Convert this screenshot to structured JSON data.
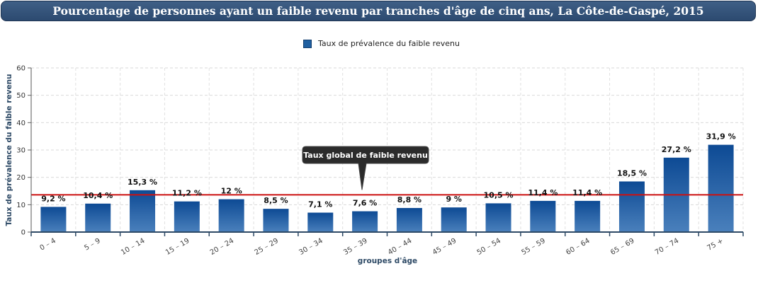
{
  "title": "Pourcentage de personnes ayant un faible revenu par tranches d'âge de cinq ans, La Côte-de-Gaspé, 2015",
  "chart_data": {
    "type": "bar",
    "title": "Pourcentage de personnes ayant un faible revenu par tranches d'âge de cinq ans, La Côte-de-Gaspé, 2015",
    "categories": [
      "0 – 4",
      "5 – 9",
      "10 – 14",
      "15 – 19",
      "20 – 24",
      "25 – 29",
      "30 – 34",
      "35 – 39",
      "40 – 44",
      "45 – 49",
      "50 – 54",
      "55 – 59",
      "60 – 64",
      "65 – 69",
      "70 – 74",
      "75 +"
    ],
    "series": [
      {
        "name": "Taux de prévalence du faible revenu",
        "values": [
          9.2,
          10.4,
          15.3,
          11.2,
          12,
          8.5,
          7.1,
          7.6,
          8.8,
          9,
          10.5,
          11.4,
          11.4,
          18.5,
          27.2,
          31.9
        ],
        "labels": [
          "9,2 %",
          "10,4 %",
          "15,3 %",
          "11,2 %",
          "12 %",
          "8,5 %",
          "7,1 %",
          "7,6 %",
          "8,8 %",
          "9 %",
          "10,5 %",
          "11,4 %",
          "11,4 %",
          "18,5 %",
          "27,2 %",
          "31,9 %"
        ],
        "color": "#1f5fa0"
      }
    ],
    "reference_line": {
      "value": 13.6,
      "label": "Taux global de faible revenu",
      "color": "#cc1111"
    },
    "xlabel": "groupes d'âge",
    "ylabel": "Taux de prévalence du faible revenu",
    "ylim": [
      0,
      60
    ],
    "yticks": [
      0,
      10,
      20,
      30,
      40,
      50,
      60
    ],
    "grid": true,
    "legend": "top-center"
  }
}
